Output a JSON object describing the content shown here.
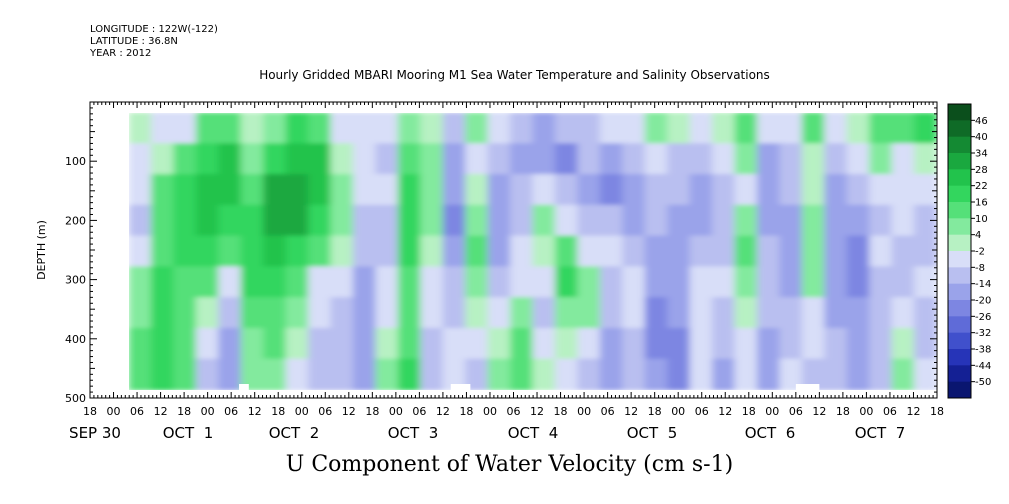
{
  "header": {
    "longitude": "LONGITUDE : 122W(-122)",
    "latitude": "LATITUDE : 36.8N",
    "year": "YEAR : 2012"
  },
  "chart_data": {
    "type": "heatmap",
    "title": "Hourly Gridded MBARI Mooring M1 Sea Water Temperature and Salinity Observations",
    "subtitle": "U Component of Water Velocity (cm s-1)",
    "ylabel": "DEPTH (m)",
    "ylim": [
      500,
      0
    ],
    "y_ticks": [
      100,
      200,
      300,
      400,
      500
    ],
    "x_hour_ticks": [
      "18",
      "00",
      "06",
      "12",
      "18",
      "00",
      "06",
      "12",
      "18",
      "00",
      "06",
      "12",
      "18",
      "00",
      "06",
      "12",
      "18",
      "00",
      "06",
      "12",
      "18",
      "00",
      "06",
      "12",
      "18",
      "00",
      "06",
      "12",
      "18",
      "00",
      "06",
      "12",
      "18",
      "00",
      "06",
      "12",
      "18"
    ],
    "x_day_labels": [
      "SEP 30",
      "OCT  1",
      "OCT  2",
      "OCT  3",
      "OCT  4",
      "OCT  5",
      "OCT  6",
      "OCT  7"
    ],
    "colorbar_levels": [
      "46",
      "40",
      "34",
      "28",
      "22",
      "16",
      "10",
      "4",
      "-2",
      "-8",
      "-14",
      "-20",
      "-26",
      "-32",
      "-38",
      "-44",
      "-50"
    ],
    "colorbar_colors": [
      "#0b4f1c",
      "#0f6b27",
      "#148a33",
      "#1aa83f",
      "#22c34c",
      "#33d65e",
      "#55e079",
      "#83ea9e",
      "#b7f1c3",
      "#d8def8",
      "#b9bff0",
      "#9aa3ea",
      "#7d86e2",
      "#5f6bd8",
      "#4050cc",
      "#2634b8",
      "#142094",
      "#0a1670"
    ],
    "field_rows": [
      [
        0,
        -6,
        -4,
        10,
        14,
        -2,
        6,
        16,
        12,
        -4,
        -6,
        -8,
        8,
        -2,
        -10,
        6,
        -4,
        -14,
        -16,
        -10,
        -12,
        -8,
        -4,
        6,
        -2,
        -6,
        2,
        12,
        -8,
        -4,
        10,
        -6,
        -2,
        14,
        12,
        16
      ],
      [
        -4,
        -2,
        14,
        20,
        24,
        4,
        18,
        26,
        22,
        2,
        -6,
        -10,
        12,
        4,
        -16,
        -4,
        -10,
        -18,
        -20,
        -22,
        -14,
        -16,
        -12,
        -6,
        -10,
        -14,
        -8,
        4,
        -16,
        -10,
        2,
        -12,
        -8,
        6,
        -4,
        2
      ],
      [
        -8,
        10,
        18,
        24,
        22,
        10,
        28,
        30,
        26,
        6,
        -4,
        -8,
        16,
        8,
        -20,
        -2,
        -16,
        -12,
        -8,
        -14,
        -18,
        -22,
        -16,
        -12,
        -14,
        -18,
        -10,
        -6,
        -18,
        -14,
        -2,
        -16,
        -14,
        -8,
        -6,
        -4
      ],
      [
        -10,
        12,
        16,
        22,
        20,
        18,
        30,
        28,
        20,
        4,
        -10,
        -12,
        18,
        6,
        -24,
        8,
        -20,
        -14,
        4,
        -6,
        -10,
        -14,
        -18,
        -14,
        -20,
        -16,
        -14,
        8,
        -16,
        -18,
        6,
        -18,
        -20,
        -12,
        -8,
        -10
      ],
      [
        -6,
        14,
        18,
        16,
        12,
        20,
        24,
        18,
        10,
        -2,
        -14,
        -10,
        16,
        -2,
        -18,
        10,
        -16,
        -8,
        2,
        12,
        -8,
        -6,
        -12,
        -16,
        -18,
        -12,
        -10,
        10,
        -14,
        -20,
        8,
        -20,
        -22,
        -6,
        -14,
        -12
      ],
      [
        4,
        16,
        14,
        10,
        -4,
        16,
        20,
        10,
        -4,
        -6,
        -18,
        -6,
        14,
        -8,
        -14,
        6,
        -10,
        -4,
        -6,
        16,
        4,
        -10,
        -8,
        -20,
        -16,
        -8,
        -6,
        6,
        -12,
        -16,
        4,
        -18,
        -24,
        -10,
        -12,
        -8
      ],
      [
        8,
        18,
        10,
        -2,
        -10,
        12,
        14,
        4,
        -8,
        -12,
        -20,
        -4,
        12,
        -6,
        -10,
        -2,
        -6,
        6,
        -10,
        8,
        8,
        -14,
        -6,
        -22,
        -18,
        -4,
        -10,
        2,
        -14,
        -12,
        -4,
        -16,
        -20,
        -12,
        -6,
        -10
      ],
      [
        10,
        20,
        12,
        -6,
        -16,
        8,
        10,
        -2,
        -12,
        -14,
        -18,
        2,
        14,
        -10,
        -6,
        -8,
        -2,
        10,
        -6,
        -2,
        -4,
        -18,
        -10,
        -24,
        -22,
        -6,
        -14,
        -4,
        -18,
        -10,
        -8,
        -14,
        -16,
        -10,
        -2,
        -12
      ],
      [
        12,
        18,
        14,
        -10,
        -18,
        4,
        6,
        -6,
        -14,
        -12,
        -16,
        6,
        16,
        -12,
        -4,
        -10,
        4,
        14,
        -2,
        -6,
        -10,
        -20,
        -12,
        -20,
        -26,
        -8,
        -16,
        -6,
        -20,
        -8,
        -12,
        -12,
        -18,
        -14,
        4,
        -8
      ]
    ],
    "white_gaps": [
      {
        "label": "gap-1",
        "x_hours": [
          38,
          40.5
        ]
      },
      {
        "label": "gap-2",
        "x_hours": [
          92,
          97
        ]
      },
      {
        "label": "gap-3",
        "x_hours": [
          180,
          186
        ]
      }
    ]
  }
}
